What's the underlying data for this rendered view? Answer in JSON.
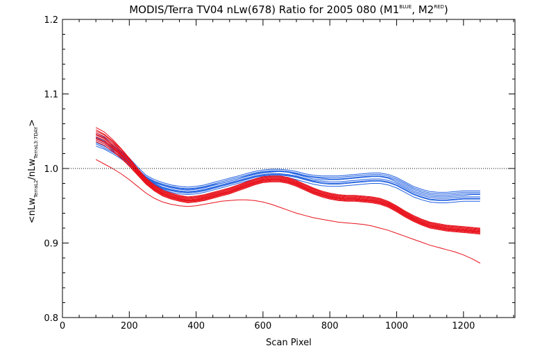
{
  "chart_data": {
    "type": "line",
    "title": {
      "main": "MODIS/Terra TV04 nLw(678) Ratio for 2005 080 (M1",
      "sup1": "BLUE",
      "mid": ", M2",
      "sup2": "RED",
      "end": ")"
    },
    "xlabel": "Scan Pixel",
    "ylabel": {
      "open": "<nLw",
      "sub1": "TerraL2",
      "mid": "/nLw",
      "sub2": "TerraL3:7DAY",
      "close": ">"
    },
    "xlim": [
      0,
      1354
    ],
    "ylim": [
      0.8,
      1.2
    ],
    "x_ticks": [
      "0",
      "200",
      "400",
      "600",
      "800",
      "1000",
      "1200"
    ],
    "y_ticks": [
      "0.8",
      "0.9",
      "1.0",
      "1.1",
      "1.2"
    ],
    "reference_line": 1.0,
    "x": [
      100,
      125,
      150,
      175,
      200,
      225,
      250,
      275,
      300,
      325,
      350,
      375,
      400,
      425,
      450,
      475,
      500,
      525,
      550,
      575,
      600,
      625,
      650,
      675,
      700,
      725,
      750,
      775,
      800,
      825,
      850,
      875,
      900,
      925,
      950,
      975,
      1000,
      1025,
      1050,
      1075,
      1100,
      1125,
      1150,
      1175,
      1200,
      1225,
      1250
    ],
    "colors": {
      "M1": "#1f5fe0",
      "M2": "#e8101a",
      "reference": "#000000"
    },
    "series": [
      {
        "group": "M1",
        "values": [
          1.04,
          1.035,
          1.028,
          1.02,
          1.01,
          0.998,
          0.988,
          0.982,
          0.978,
          0.975,
          0.973,
          0.972,
          0.973,
          0.975,
          0.978,
          0.98,
          0.983,
          0.986,
          0.989,
          0.992,
          0.994,
          0.995,
          0.996,
          0.995,
          0.993,
          0.99,
          0.988,
          0.987,
          0.986,
          0.986,
          0.987,
          0.988,
          0.989,
          0.99,
          0.99,
          0.988,
          0.984,
          0.978,
          0.972,
          0.968,
          0.965,
          0.964,
          0.964,
          0.965,
          0.966,
          0.966,
          0.966
        ]
      },
      {
        "group": "M1",
        "values": [
          1.045,
          1.04,
          1.032,
          1.022,
          1.012,
          1.0,
          0.988,
          0.981,
          0.977,
          0.974,
          0.972,
          0.971,
          0.972,
          0.974,
          0.977,
          0.98,
          0.983,
          0.986,
          0.99,
          0.993,
          0.995,
          0.996,
          0.996,
          0.995,
          0.992,
          0.989,
          0.986,
          0.985,
          0.985,
          0.985,
          0.986,
          0.987,
          0.988,
          0.989,
          0.989,
          0.987,
          0.982,
          0.976,
          0.97,
          0.966,
          0.963,
          0.962,
          0.962,
          0.963,
          0.964,
          0.965,
          0.965
        ]
      },
      {
        "group": "M1",
        "values": [
          1.035,
          1.03,
          1.024,
          1.016,
          1.007,
          0.996,
          0.986,
          0.979,
          0.974,
          0.971,
          0.969,
          0.968,
          0.969,
          0.971,
          0.974,
          0.977,
          0.98,
          0.983,
          0.986,
          0.989,
          0.991,
          0.992,
          0.992,
          0.991,
          0.989,
          0.986,
          0.983,
          0.981,
          0.98,
          0.98,
          0.981,
          0.982,
          0.983,
          0.984,
          0.984,
          0.982,
          0.978,
          0.972,
          0.966,
          0.962,
          0.959,
          0.958,
          0.958,
          0.959,
          0.96,
          0.96,
          0.96
        ]
      },
      {
        "group": "M1",
        "values": [
          1.042,
          1.037,
          1.03,
          1.021,
          1.011,
          0.999,
          0.989,
          0.983,
          0.979,
          0.976,
          0.974,
          0.973,
          0.974,
          0.976,
          0.979,
          0.982,
          0.985,
          0.988,
          0.991,
          0.994,
          0.996,
          0.997,
          0.997,
          0.996,
          0.994,
          0.991,
          0.989,
          0.988,
          0.988,
          0.988,
          0.989,
          0.99,
          0.991,
          0.992,
          0.992,
          0.99,
          0.986,
          0.98,
          0.974,
          0.97,
          0.967,
          0.966,
          0.966,
          0.967,
          0.968,
          0.968,
          0.968
        ]
      },
      {
        "group": "M1",
        "values": [
          1.03,
          1.026,
          1.02,
          1.013,
          1.005,
          0.995,
          0.985,
          0.977,
          0.972,
          0.968,
          0.966,
          0.965,
          0.966,
          0.968,
          0.971,
          0.974,
          0.977,
          0.98,
          0.983,
          0.986,
          0.988,
          0.989,
          0.989,
          0.988,
          0.985,
          0.982,
          0.979,
          0.977,
          0.976,
          0.976,
          0.977,
          0.978,
          0.979,
          0.98,
          0.98,
          0.978,
          0.974,
          0.968,
          0.962,
          0.958,
          0.955,
          0.954,
          0.954,
          0.955,
          0.956,
          0.956,
          0.956
        ]
      },
      {
        "group": "M1",
        "values": [
          1.048,
          1.042,
          1.034,
          1.024,
          1.014,
          1.002,
          0.991,
          0.985,
          0.981,
          0.978,
          0.976,
          0.975,
          0.976,
          0.978,
          0.981,
          0.984,
          0.987,
          0.99,
          0.993,
          0.996,
          0.998,
          0.999,
          0.999,
          0.998,
          0.996,
          0.993,
          0.991,
          0.99,
          0.99,
          0.99,
          0.991,
          0.992,
          0.993,
          0.994,
          0.994,
          0.992,
          0.988,
          0.982,
          0.976,
          0.972,
          0.969,
          0.968,
          0.968,
          0.969,
          0.97,
          0.97,
          0.97
        ]
      },
      {
        "group": "M1",
        "values": [
          1.038,
          1.033,
          1.026,
          1.018,
          1.008,
          0.997,
          0.987,
          0.98,
          0.975,
          0.972,
          0.97,
          0.969,
          0.97,
          0.972,
          0.975,
          0.978,
          0.981,
          0.984,
          0.987,
          0.99,
          0.992,
          0.993,
          0.993,
          0.992,
          0.99,
          0.987,
          0.984,
          0.983,
          0.982,
          0.982,
          0.983,
          0.984,
          0.985,
          0.986,
          0.986,
          0.984,
          0.98,
          0.974,
          0.968,
          0.964,
          0.961,
          0.96,
          0.96,
          0.961,
          0.962,
          0.962,
          0.962
        ]
      },
      {
        "group": "M1",
        "values": [
          1.033,
          1.028,
          1.022,
          1.015,
          1.006,
          0.996,
          0.986,
          0.978,
          0.973,
          0.97,
          0.968,
          0.967,
          0.968,
          0.97,
          0.973,
          0.976,
          0.979,
          0.982,
          0.985,
          0.988,
          0.99,
          0.991,
          0.991,
          0.99,
          0.988,
          0.985,
          0.982,
          0.98,
          0.979,
          0.979,
          0.98,
          0.981,
          0.982,
          0.983,
          0.983,
          0.981,
          0.977,
          0.971,
          0.965,
          0.961,
          0.958,
          0.957,
          0.957,
          0.958,
          0.959,
          0.959,
          0.959
        ]
      },
      {
        "group": "M2",
        "values": [
          1.05,
          1.045,
          1.036,
          1.024,
          1.012,
          0.998,
          0.985,
          0.976,
          0.969,
          0.965,
          0.962,
          0.96,
          0.961,
          0.963,
          0.966,
          0.969,
          0.972,
          0.976,
          0.98,
          0.984,
          0.987,
          0.988,
          0.988,
          0.986,
          0.982,
          0.977,
          0.972,
          0.968,
          0.965,
          0.963,
          0.962,
          0.962,
          0.961,
          0.96,
          0.958,
          0.954,
          0.948,
          0.941,
          0.935,
          0.93,
          0.926,
          0.924,
          0.922,
          0.921,
          0.92,
          0.919,
          0.918
        ]
      },
      {
        "group": "M2",
        "values": [
          1.045,
          1.04,
          1.031,
          1.02,
          1.008,
          0.995,
          0.982,
          0.973,
          0.966,
          0.962,
          0.959,
          0.957,
          0.958,
          0.96,
          0.963,
          0.966,
          0.969,
          0.973,
          0.977,
          0.981,
          0.984,
          0.985,
          0.985,
          0.983,
          0.979,
          0.974,
          0.969,
          0.965,
          0.962,
          0.96,
          0.959,
          0.959,
          0.958,
          0.957,
          0.955,
          0.951,
          0.945,
          0.938,
          0.932,
          0.927,
          0.923,
          0.921,
          0.919,
          0.918,
          0.917,
          0.916,
          0.915
        ]
      },
      {
        "group": "M2",
        "values": [
          1.055,
          1.049,
          1.039,
          1.027,
          1.014,
          1.0,
          0.987,
          0.978,
          0.971,
          0.967,
          0.964,
          0.962,
          0.963,
          0.965,
          0.968,
          0.971,
          0.974,
          0.978,
          0.982,
          0.986,
          0.989,
          0.99,
          0.99,
          0.988,
          0.984,
          0.979,
          0.974,
          0.97,
          0.967,
          0.965,
          0.964,
          0.964,
          0.963,
          0.962,
          0.96,
          0.956,
          0.95,
          0.943,
          0.937,
          0.932,
          0.928,
          0.926,
          0.924,
          0.923,
          0.922,
          0.921,
          0.92
        ]
      },
      {
        "group": "M2",
        "values": [
          1.04,
          1.035,
          1.027,
          1.017,
          1.006,
          0.993,
          0.981,
          0.972,
          0.965,
          0.961,
          0.958,
          0.956,
          0.957,
          0.959,
          0.962,
          0.965,
          0.968,
          0.972,
          0.976,
          0.98,
          0.983,
          0.984,
          0.984,
          0.982,
          0.978,
          0.973,
          0.968,
          0.964,
          0.961,
          0.959,
          0.958,
          0.958,
          0.957,
          0.956,
          0.954,
          0.95,
          0.944,
          0.937,
          0.931,
          0.926,
          0.922,
          0.92,
          0.918,
          0.917,
          0.916,
          0.915,
          0.914
        ]
      },
      {
        "group": "M2",
        "values": [
          1.048,
          1.043,
          1.034,
          1.023,
          1.011,
          0.997,
          0.984,
          0.975,
          0.968,
          0.964,
          0.961,
          0.959,
          0.96,
          0.962,
          0.965,
          0.968,
          0.971,
          0.975,
          0.979,
          0.983,
          0.986,
          0.987,
          0.987,
          0.985,
          0.981,
          0.976,
          0.971,
          0.967,
          0.964,
          0.962,
          0.961,
          0.961,
          0.96,
          0.959,
          0.957,
          0.953,
          0.947,
          0.94,
          0.934,
          0.929,
          0.925,
          0.923,
          0.921,
          0.92,
          0.919,
          0.918,
          0.917
        ]
      },
      {
        "group": "M2",
        "values": [
          1.036,
          1.031,
          1.023,
          1.014,
          1.003,
          0.991,
          0.979,
          0.97,
          0.963,
          0.959,
          0.956,
          0.954,
          0.955,
          0.957,
          0.96,
          0.963,
          0.966,
          0.97,
          0.974,
          0.978,
          0.981,
          0.982,
          0.982,
          0.98,
          0.976,
          0.971,
          0.966,
          0.962,
          0.959,
          0.957,
          0.956,
          0.956,
          0.955,
          0.954,
          0.952,
          0.948,
          0.942,
          0.935,
          0.929,
          0.924,
          0.92,
          0.918,
          0.916,
          0.915,
          0.914,
          0.913,
          0.912
        ]
      },
      {
        "group": "M2",
        "values": [
          1.052,
          1.046,
          1.037,
          1.026,
          1.013,
          0.999,
          0.986,
          0.977,
          0.97,
          0.966,
          0.963,
          0.961,
          0.962,
          0.964,
          0.967,
          0.97,
          0.973,
          0.977,
          0.981,
          0.985,
          0.988,
          0.989,
          0.989,
          0.987,
          0.983,
          0.978,
          0.973,
          0.969,
          0.966,
          0.964,
          0.963,
          0.963,
          0.962,
          0.961,
          0.959,
          0.955,
          0.949,
          0.942,
          0.936,
          0.931,
          0.927,
          0.925,
          0.923,
          0.922,
          0.921,
          0.92,
          0.919
        ]
      },
      {
        "group": "M2",
        "values": [
          1.043,
          1.038,
          1.029,
          1.019,
          1.007,
          0.994,
          0.982,
          0.973,
          0.966,
          0.962,
          0.959,
          0.957,
          0.958,
          0.96,
          0.963,
          0.966,
          0.969,
          0.973,
          0.977,
          0.981,
          0.984,
          0.985,
          0.985,
          0.983,
          0.979,
          0.974,
          0.969,
          0.965,
          0.962,
          0.96,
          0.959,
          0.959,
          0.958,
          0.957,
          0.955,
          0.951,
          0.945,
          0.938,
          0.932,
          0.927,
          0.923,
          0.921,
          0.919,
          0.918,
          0.917,
          0.916,
          0.915
        ]
      },
      {
        "group": "M2",
        "values": [
          1.038,
          1.033,
          1.025,
          1.015,
          1.004,
          0.992,
          0.98,
          0.971,
          0.964,
          0.96,
          0.957,
          0.955,
          0.956,
          0.958,
          0.961,
          0.964,
          0.967,
          0.971,
          0.975,
          0.979,
          0.982,
          0.983,
          0.983,
          0.981,
          0.977,
          0.972,
          0.967,
          0.963,
          0.96,
          0.958,
          0.957,
          0.957,
          0.956,
          0.955,
          0.953,
          0.949,
          0.943,
          0.936,
          0.93,
          0.925,
          0.921,
          0.919,
          0.917,
          0.916,
          0.915,
          0.914,
          0.913
        ]
      },
      {
        "group": "M2",
        "values": [
          1.046,
          1.041,
          1.032,
          1.021,
          1.009,
          0.996,
          0.983,
          0.974,
          0.967,
          0.963,
          0.96,
          0.958,
          0.959,
          0.961,
          0.964,
          0.967,
          0.97,
          0.974,
          0.978,
          0.982,
          0.985,
          0.986,
          0.986,
          0.984,
          0.98,
          0.975,
          0.97,
          0.966,
          0.963,
          0.961,
          0.96,
          0.96,
          0.959,
          0.958,
          0.956,
          0.952,
          0.946,
          0.939,
          0.933,
          0.928,
          0.924,
          0.922,
          0.92,
          0.919,
          0.918,
          0.917,
          0.916
        ]
      },
      {
        "group": "M2",
        "values": [
          1.041,
          1.036,
          1.028,
          1.018,
          1.007,
          0.994,
          0.982,
          0.973,
          0.966,
          0.962,
          0.959,
          0.957,
          0.958,
          0.96,
          0.963,
          0.966,
          0.969,
          0.973,
          0.977,
          0.981,
          0.984,
          0.985,
          0.985,
          0.983,
          0.979,
          0.974,
          0.969,
          0.965,
          0.962,
          0.96,
          0.959,
          0.959,
          0.958,
          0.957,
          0.955,
          0.951,
          0.945,
          0.938,
          0.932,
          0.927,
          0.923,
          0.921,
          0.919,
          0.918,
          0.917,
          0.916,
          0.915
        ]
      },
      {
        "group": "M2",
        "values": [
          1.012,
          1.006,
          1.0,
          0.993,
          0.985,
          0.976,
          0.967,
          0.96,
          0.955,
          0.952,
          0.95,
          0.949,
          0.95,
          0.952,
          0.954,
          0.956,
          0.957,
          0.958,
          0.958,
          0.957,
          0.955,
          0.952,
          0.948,
          0.944,
          0.94,
          0.937,
          0.934,
          0.932,
          0.93,
          0.928,
          0.927,
          0.926,
          0.925,
          0.923,
          0.92,
          0.917,
          0.913,
          0.909,
          0.905,
          0.901,
          0.897,
          0.894,
          0.891,
          0.888,
          0.884,
          0.879,
          0.873
        ]
      }
    ]
  }
}
